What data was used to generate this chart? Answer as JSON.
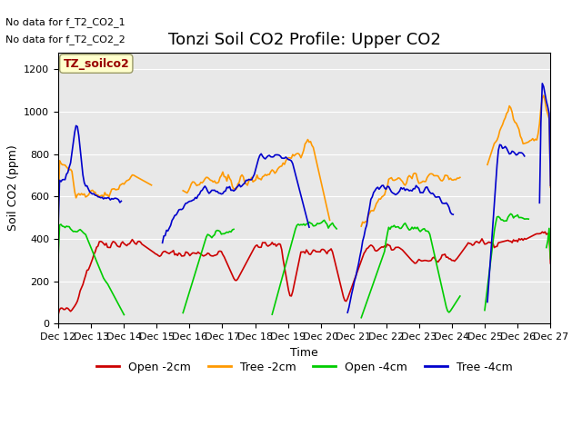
{
  "title": "Tonzi Soil CO2 Profile: Upper CO2",
  "ylabel": "Soil CO2 (ppm)",
  "xlabel": "Time",
  "no_data_text": [
    "No data for f_T2_CO2_1",
    "No data for f_T2_CO2_2"
  ],
  "legend_label": "TZ_soilco2",
  "ylim": [
    0,
    1280
  ],
  "yticks": [
    0,
    200,
    400,
    600,
    800,
    1000,
    1200
  ],
  "xtick_labels": [
    "Dec 12",
    "Dec 13",
    "Dec 14",
    "Dec 15",
    "Dec 16",
    "Dec 17",
    "Dec 18",
    "Dec 19",
    "Dec 20",
    "Dec 21",
    "Dec 22",
    "Dec 23",
    "Dec 24",
    "Dec 25",
    "Dec 26",
    "Dec 27"
  ],
  "line_colors": {
    "open_2cm": "#cc0000",
    "tree_2cm": "#ff9900",
    "open_4cm": "#00cc00",
    "tree_4cm": "#0000cc"
  },
  "line_labels": [
    "Open -2cm",
    "Tree -2cm",
    "Open -4cm",
    "Tree -4cm"
  ],
  "background_color": "#e8e8e8",
  "title_fontsize": 13,
  "axis_fontsize": 9,
  "tick_fontsize": 8
}
